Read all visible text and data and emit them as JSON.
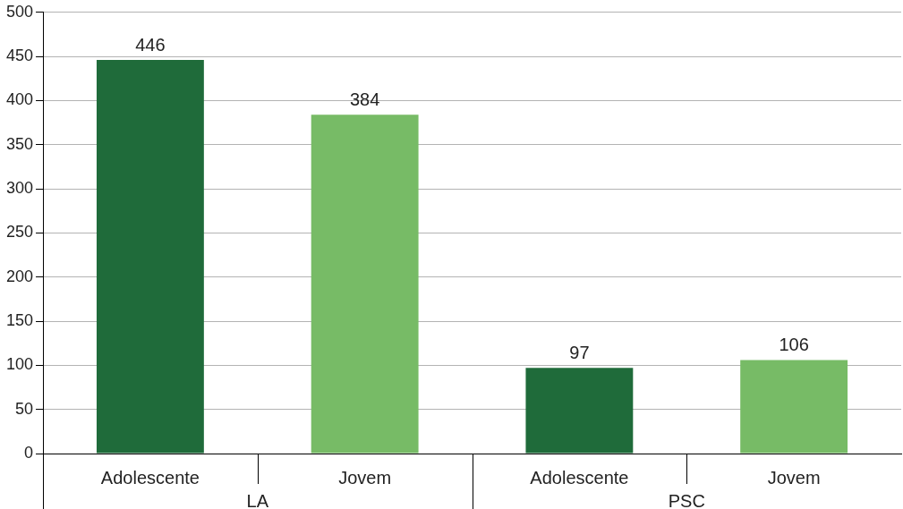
{
  "chart_data": {
    "type": "bar",
    "categories": [
      "LA",
      "PSC"
    ],
    "series": [
      {
        "name": "Adolescente",
        "color": "#1f6b3a",
        "values": [
          446,
          97
        ]
      },
      {
        "name": "Jovem",
        "color": "#77bb66",
        "values": [
          384,
          106
        ]
      }
    ],
    "ylim": [
      0,
      500
    ],
    "yticks": [
      0,
      50,
      100,
      150,
      200,
      250,
      300,
      350,
      400,
      450,
      500
    ],
    "grid": "y",
    "legend": false,
    "data_labels": true
  }
}
